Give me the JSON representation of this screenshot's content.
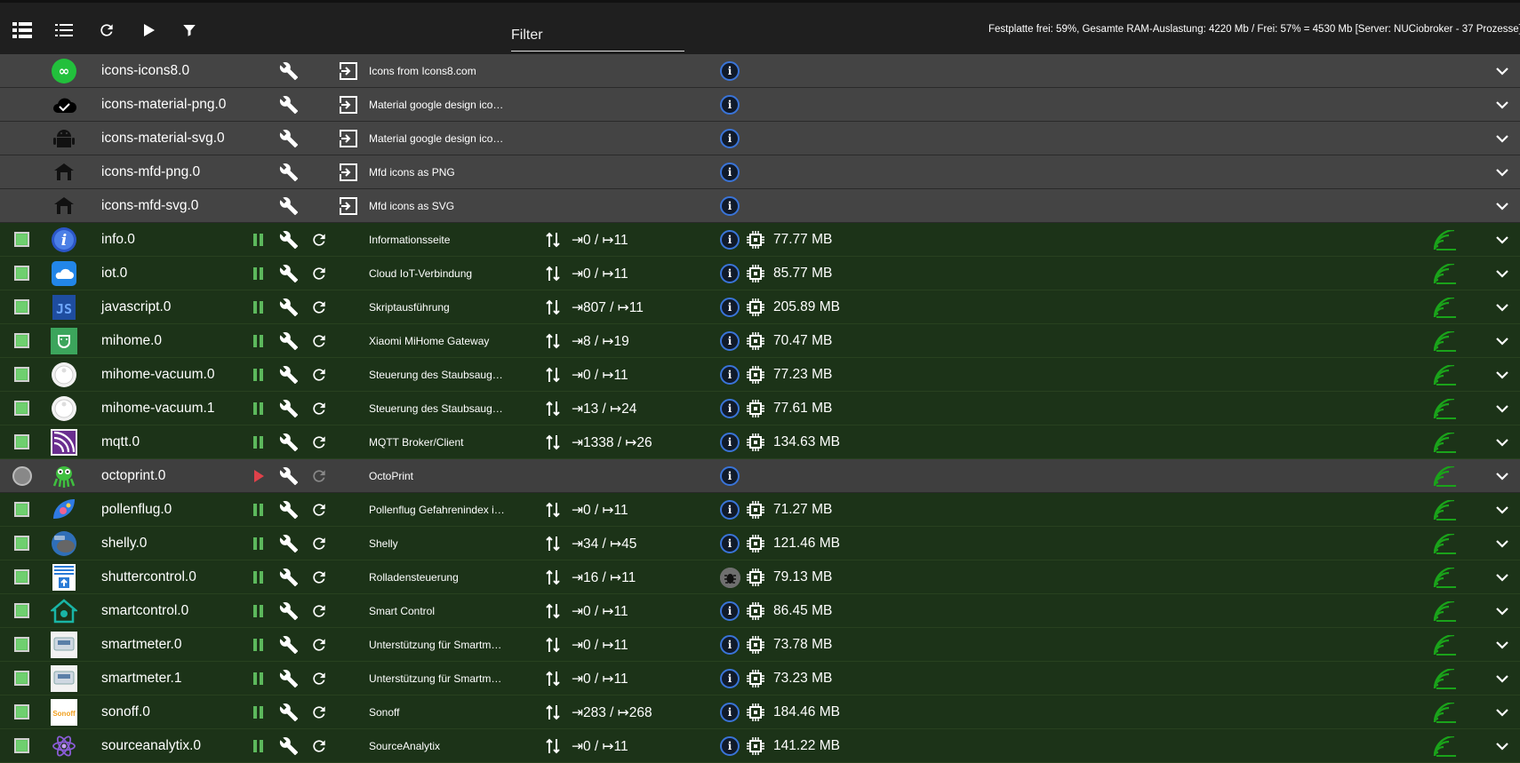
{
  "toolbar": {
    "filter_placeholder": "Filter",
    "status": "Festplatte frei: 59%, Gesamte RAM-Auslastung: 4220 Mb / Frei: 57% = 4530 Mb [Server: NUCiobroker - 37 Prozesse]",
    "icons": [
      "list-view-icon",
      "compact-list-icon",
      "reload-icon",
      "play-icon",
      "filter-icon"
    ]
  },
  "colors": {
    "active_row": "#1c3318",
    "inactive_row": "#3f3f3f",
    "accent_green": "#5cb85c",
    "info_blue": "#3a74d8",
    "stopped_red": "#e0414a"
  },
  "rows": [
    {
      "type": "inst",
      "name": "icons-icons8.0",
      "desc": "Icons from Icons8.com",
      "icon": "icons8-logo"
    },
    {
      "type": "inst",
      "name": "icons-material-png.0",
      "desc": "Material google design ico…",
      "icon": "cloud-check-icon"
    },
    {
      "type": "inst",
      "name": "icons-material-svg.0",
      "desc": "Material google design ico…",
      "icon": "android-icon"
    },
    {
      "type": "inst",
      "name": "icons-mfd-png.0",
      "desc": "Mfd icons as PNG",
      "icon": "house-icon"
    },
    {
      "type": "inst",
      "name": "icons-mfd-svg.0",
      "desc": "Mfd icons as SVG",
      "icon": "house-icon"
    },
    {
      "type": "active",
      "name": "info.0",
      "desc": "Informationsseite",
      "events": "⇥0 / ↦11",
      "mem": "77.77 MB",
      "icon": "info-adapter-icon"
    },
    {
      "type": "active",
      "name": "iot.0",
      "desc": "Cloud IoT-Verbindung",
      "events": "⇥0 / ↦11",
      "mem": "85.77 MB",
      "icon": "cloud-icon"
    },
    {
      "type": "active",
      "name": "javascript.0",
      "desc": "Skriptausführung",
      "events": "⇥807 / ↦11",
      "mem": "205.89 MB",
      "icon": "js-icon"
    },
    {
      "type": "active",
      "name": "mihome.0",
      "desc": "Xiaomi MiHome Gateway",
      "events": "⇥8 / ↦19",
      "mem": "70.47 MB",
      "icon": "mi-icon"
    },
    {
      "type": "active",
      "name": "mihome-vacuum.0",
      "desc": "Steuerung des Staubsaug…",
      "events": "⇥0 / ↦11",
      "mem": "77.23 MB",
      "icon": "vacuum-icon"
    },
    {
      "type": "active",
      "name": "mihome-vacuum.1",
      "desc": "Steuerung des Staubsaug…",
      "events": "⇥13 / ↦24",
      "mem": "77.61 MB",
      "icon": "vacuum-icon"
    },
    {
      "type": "active",
      "name": "mqtt.0",
      "desc": "MQTT Broker/Client",
      "events": "⇥1338 / ↦26",
      "mem": "134.63 MB",
      "icon": "mqtt-icon"
    },
    {
      "type": "inactive",
      "name": "octoprint.0",
      "desc": "OctoPrint",
      "icon": "octoprint-icon"
    },
    {
      "type": "active",
      "name": "pollenflug.0",
      "desc": "Pollenflug Gefahrenindex i…",
      "events": "⇥0 / ↦11",
      "mem": "71.27 MB",
      "icon": "pollen-icon"
    },
    {
      "type": "active",
      "name": "shelly.0",
      "desc": "Shelly",
      "events": "⇥34 / ↦45",
      "mem": "121.46 MB",
      "icon": "shelly-icon"
    },
    {
      "type": "active",
      "name": "shuttercontrol.0",
      "desc": "Rolladensteuerung",
      "events": "⇥16 / ↦11",
      "mem": "79.13 MB",
      "icon": "shutter-icon",
      "bug": true
    },
    {
      "type": "active",
      "name": "smartcontrol.0",
      "desc": "Smart Control",
      "events": "⇥0 / ↦11",
      "mem": "86.45 MB",
      "icon": "smarthome-icon"
    },
    {
      "type": "active",
      "name": "smartmeter.0",
      "desc": "Unterstützung für Smartm…",
      "events": "⇥0 / ↦11",
      "mem": "73.78 MB",
      "icon": "meter-icon"
    },
    {
      "type": "active",
      "name": "smartmeter.1",
      "desc": "Unterstützung für Smartm…",
      "events": "⇥0 / ↦11",
      "mem": "73.23 MB",
      "icon": "meter-icon"
    },
    {
      "type": "active",
      "name": "sonoff.0",
      "desc": "Sonoff",
      "events": "⇥283 / ↦268",
      "mem": "184.46 MB",
      "icon": "sonoff-icon"
    },
    {
      "type": "active",
      "name": "sourceanalytix.0",
      "desc": "SourceAnalytix",
      "events": "⇥0 / ↦11",
      "mem": "141.22 MB",
      "icon": "atom-icon"
    }
  ]
}
